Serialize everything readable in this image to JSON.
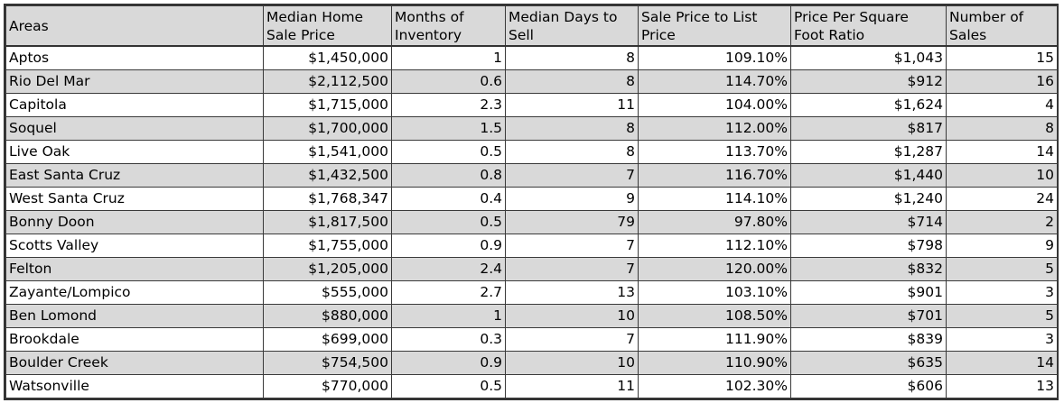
{
  "headers": [
    "Areas",
    "Median Home Sale Price",
    "Months of Inventory",
    "Median Days to Sell",
    "Sale Price to List Price",
    "Price Per Square Foot Ratio",
    "Number of Sales"
  ],
  "rows": [
    [
      "Aptos",
      "$1,450,000",
      "1",
      "8",
      "109.10%",
      "$1,043",
      "15"
    ],
    [
      "Rio Del Mar",
      "$2,112,500",
      "0.6",
      "8",
      "114.70%",
      "$912",
      "16"
    ],
    [
      "Capitola",
      "$1,715,000",
      "2.3",
      "11",
      "104.00%",
      "$1,624",
      "4"
    ],
    [
      "Soquel",
      "$1,700,000",
      "1.5",
      "8",
      "112.00%",
      "$817",
      "8"
    ],
    [
      "Live Oak",
      "$1,541,000",
      "0.5",
      "8",
      "113.70%",
      "$1,287",
      "14"
    ],
    [
      "East Santa Cruz",
      "$1,432,500",
      "0.8",
      "7",
      "116.70%",
      "$1,440",
      "10"
    ],
    [
      "West Santa Cruz",
      "$1,768,347",
      "0.4",
      "9",
      "114.10%",
      "$1,240",
      "24"
    ],
    [
      "Bonny Doon",
      "$1,817,500",
      "0.5",
      "79",
      "97.80%",
      "$714",
      "2"
    ],
    [
      "Scotts Valley",
      "$1,755,000",
      "0.9",
      "7",
      "112.10%",
      "$798",
      "9"
    ],
    [
      "Felton",
      "$1,205,000",
      "2.4",
      "7",
      "120.00%",
      "$832",
      "5"
    ],
    [
      "Zayante/Lompico",
      "$555,000",
      "2.7",
      "13",
      "103.10%",
      "$901",
      "3"
    ],
    [
      "Ben Lomond",
      "$880,000",
      "1",
      "10",
      "108.50%",
      "$701",
      "5"
    ],
    [
      "Brookdale",
      "$699,000",
      "0.3",
      "7",
      "111.90%",
      "$839",
      "3"
    ],
    [
      "Boulder Creek",
      "$754,500",
      "0.9",
      "10",
      "110.90%",
      "$635",
      "14"
    ],
    [
      "Watsonville",
      "$770,000",
      "0.5",
      "11",
      "102.30%",
      "$606",
      "13"
    ]
  ]
}
